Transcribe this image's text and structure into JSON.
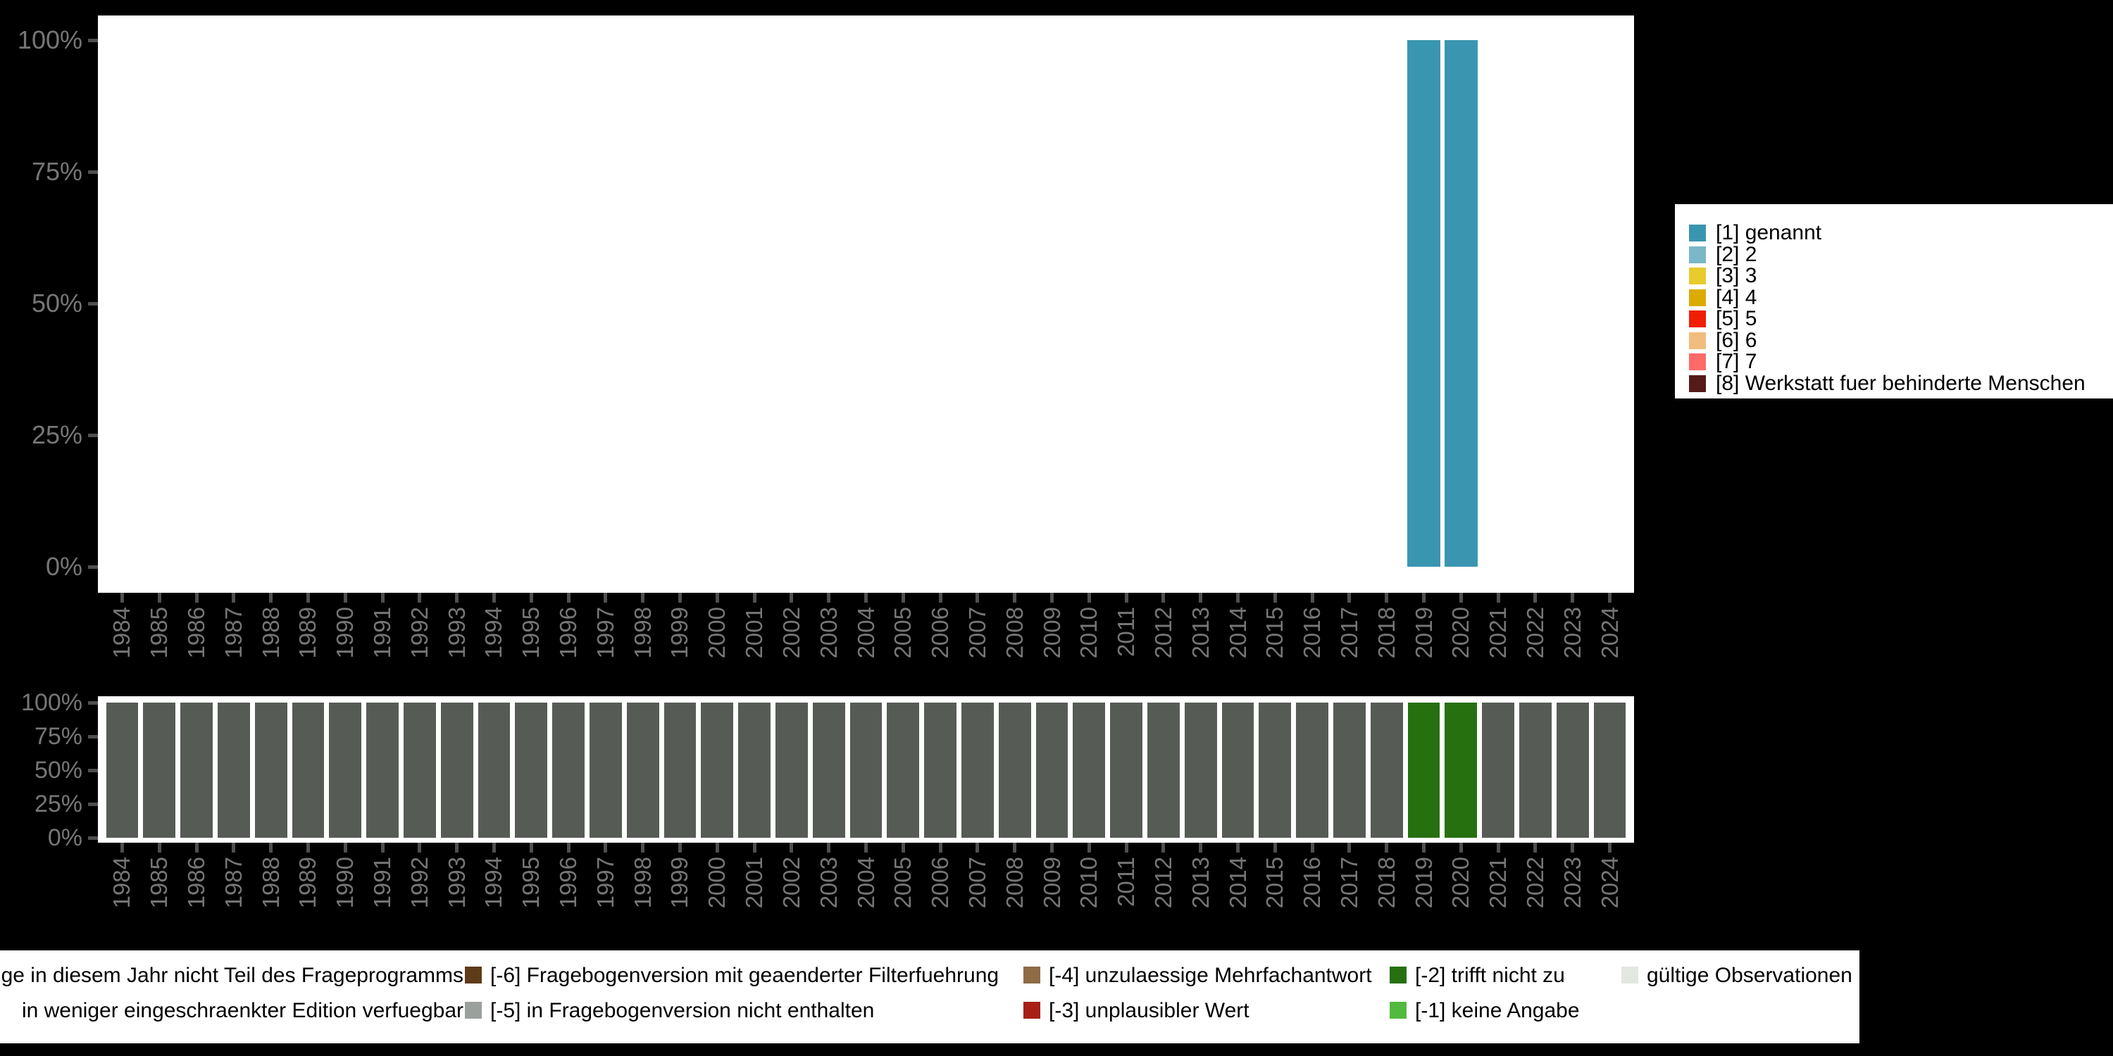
{
  "colors": {
    "canvas_bg": "#000000",
    "plot_bg": "#ffffff",
    "axis_label": "#767676",
    "axis_tick": "#4f4f4f",
    "legend_bg": "#ffffff",
    "legend_text": "#000000",
    "bar_genannt": "#3a96b0",
    "bar_missing_default": "#565c55",
    "bar_missing_trifft_nicht_zu": "#26700f"
  },
  "axes": {
    "years": [
      "1984",
      "1985",
      "1986",
      "1987",
      "1988",
      "1989",
      "1990",
      "1991",
      "1992",
      "1993",
      "1994",
      "1995",
      "1996",
      "1997",
      "1998",
      "1999",
      "2000",
      "2001",
      "2002",
      "2003",
      "2004",
      "2005",
      "2006",
      "2007",
      "2008",
      "2009",
      "2010",
      "2011",
      "2012",
      "2013",
      "2014",
      "2015",
      "2016",
      "2017",
      "2018",
      "2019",
      "2020",
      "2021",
      "2022",
      "2023",
      "2024"
    ],
    "y_ticks": [
      "100%",
      "75%",
      "50%",
      "25%",
      "0%"
    ]
  },
  "category_legend": {
    "items": [
      {
        "label": "[1] genannt",
        "color": "#3a96b0"
      },
      {
        "label": "[2] 2",
        "color": "#7ab7c9"
      },
      {
        "label": "[3] 3",
        "color": "#e8cb2d"
      },
      {
        "label": "[4] 4",
        "color": "#dcab00"
      },
      {
        "label": "[5] 5",
        "color": "#f01e05"
      },
      {
        "label": "[6] 6",
        "color": "#f1bd7e"
      },
      {
        "label": "[7] 7",
        "color": "#fd6a68"
      },
      {
        "label": "[8] Werkstatt fuer behinderte Menschen",
        "color": "#541b18"
      }
    ]
  },
  "missings_legend": {
    "columns": [
      {
        "items": [
          {
            "label": "ge in diesem Jahr nicht Teil des Frageprogramms",
            "color": null
          },
          {
            "label": "in weniger eingeschraenkter Edition verfuegbar",
            "color": null
          }
        ]
      },
      {
        "items": [
          {
            "label": "[-6] Fragebogenversion mit geaenderter Filterfuehrung",
            "color": "#5e3c18"
          },
          {
            "label": "[-5] in Fragebogenversion nicht enthalten",
            "color": "#9aa09b"
          }
        ]
      },
      {
        "items": [
          {
            "label": "[-4] unzulaessige Mehrfachantwort",
            "color": "#8f6b46"
          },
          {
            "label": "[-3] unplausibler Wert",
            "color": "#a81f15"
          }
        ]
      },
      {
        "items": [
          {
            "label": "[-2] trifft nicht zu",
            "color": "#26700f"
          },
          {
            "label": "[-1] keine Angabe",
            "color": "#52ba3e"
          }
        ]
      },
      {
        "items": [
          {
            "label": "gültige Observationen",
            "color": "#e3e7e1"
          }
        ]
      }
    ]
  },
  "chart_data": [
    {
      "type": "bar",
      "stacked": true,
      "title": "",
      "xlabel": "",
      "ylabel": "",
      "x": [
        "1984",
        "1985",
        "1986",
        "1987",
        "1988",
        "1989",
        "1990",
        "1991",
        "1992",
        "1993",
        "1994",
        "1995",
        "1996",
        "1997",
        "1998",
        "1999",
        "2000",
        "2001",
        "2002",
        "2003",
        "2004",
        "2005",
        "2006",
        "2007",
        "2008",
        "2009",
        "2010",
        "2011",
        "2012",
        "2013",
        "2014",
        "2015",
        "2016",
        "2017",
        "2018",
        "2019",
        "2020",
        "2021",
        "2022",
        "2023",
        "2024"
      ],
      "ylim": [
        0,
        100
      ],
      "yticks": [
        "0%",
        "25%",
        "50%",
        "75%",
        "100%"
      ],
      "grid": false,
      "legend_position": "right",
      "series": [
        {
          "name": "[1] genannt",
          "color": "#3a96b0",
          "values": [
            0,
            0,
            0,
            0,
            0,
            0,
            0,
            0,
            0,
            0,
            0,
            0,
            0,
            0,
            0,
            0,
            0,
            0,
            0,
            0,
            0,
            0,
            0,
            0,
            0,
            0,
            0,
            0,
            0,
            0,
            0,
            0,
            0,
            0,
            0,
            100,
            100,
            0,
            0,
            0,
            0
          ]
        }
      ]
    },
    {
      "type": "bar",
      "stacked": true,
      "title": "",
      "xlabel": "",
      "ylabel": "",
      "x": [
        "1984",
        "1985",
        "1986",
        "1987",
        "1988",
        "1989",
        "1990",
        "1991",
        "1992",
        "1993",
        "1994",
        "1995",
        "1996",
        "1997",
        "1998",
        "1999",
        "2000",
        "2001",
        "2002",
        "2003",
        "2004",
        "2005",
        "2006",
        "2007",
        "2008",
        "2009",
        "2010",
        "2011",
        "2012",
        "2013",
        "2014",
        "2015",
        "2016",
        "2017",
        "2018",
        "2019",
        "2020",
        "2021",
        "2022",
        "2023",
        "2024"
      ],
      "ylim": [
        0,
        100
      ],
      "yticks": [
        "0%",
        "25%",
        "50%",
        "75%",
        "100%"
      ],
      "grid": false,
      "legend_position": "bottom",
      "series": [
        {
          "name": "[-5] in Fragebogenversion nicht enthalten",
          "color": "#565c55",
          "values": [
            100,
            100,
            100,
            100,
            100,
            100,
            100,
            100,
            100,
            100,
            100,
            100,
            100,
            100,
            100,
            100,
            100,
            100,
            100,
            100,
            100,
            100,
            100,
            100,
            100,
            100,
            100,
            100,
            100,
            100,
            100,
            100,
            100,
            100,
            100,
            0,
            0,
            100,
            100,
            100,
            100
          ]
        },
        {
          "name": "[-2] trifft nicht zu",
          "color": "#26700f",
          "values": [
            0,
            0,
            0,
            0,
            0,
            0,
            0,
            0,
            0,
            0,
            0,
            0,
            0,
            0,
            0,
            0,
            0,
            0,
            0,
            0,
            0,
            0,
            0,
            0,
            0,
            0,
            0,
            0,
            0,
            0,
            0,
            0,
            0,
            0,
            0,
            100,
            100,
            0,
            0,
            0,
            0
          ]
        }
      ]
    }
  ]
}
